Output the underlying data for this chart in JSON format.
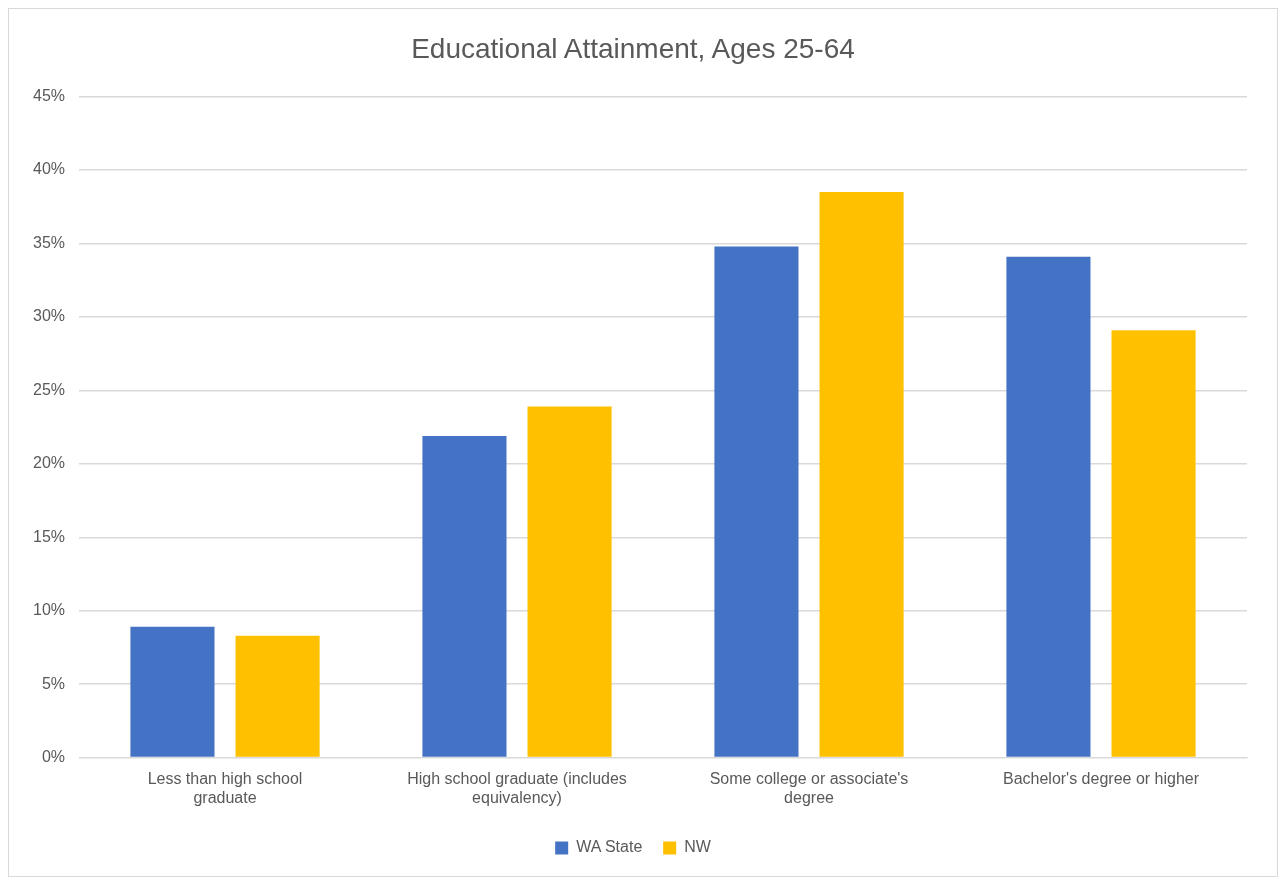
{
  "chart_data": {
    "type": "bar",
    "title": "Educational Attainment, Ages 25-64",
    "categories": [
      "Less than high school graduate",
      "High school graduate (includes equivalency)",
      "Some college or associate's degree",
      "Bachelor's degree or higher"
    ],
    "series": [
      {
        "name": "WA State",
        "color": "#4472c4",
        "values": [
          8.9,
          21.9,
          34.8,
          34.1
        ]
      },
      {
        "name": "NW",
        "color": "#ffc000",
        "values": [
          8.3,
          23.9,
          38.5,
          29.1
        ]
      }
    ],
    "ylim": [
      0,
      45
    ],
    "yticks": [
      {
        "value": 0,
        "label": "0%"
      },
      {
        "value": 5,
        "label": "5%"
      },
      {
        "value": 10,
        "label": "10%"
      },
      {
        "value": 15,
        "label": "15%"
      },
      {
        "value": 20,
        "label": "20%"
      },
      {
        "value": 25,
        "label": "25%"
      },
      {
        "value": 30,
        "label": "30%"
      },
      {
        "value": 35,
        "label": "35%"
      },
      {
        "value": 40,
        "label": "40%"
      },
      {
        "value": 45,
        "label": "45%"
      }
    ],
    "grid": "y",
    "legend": "bottom"
  }
}
